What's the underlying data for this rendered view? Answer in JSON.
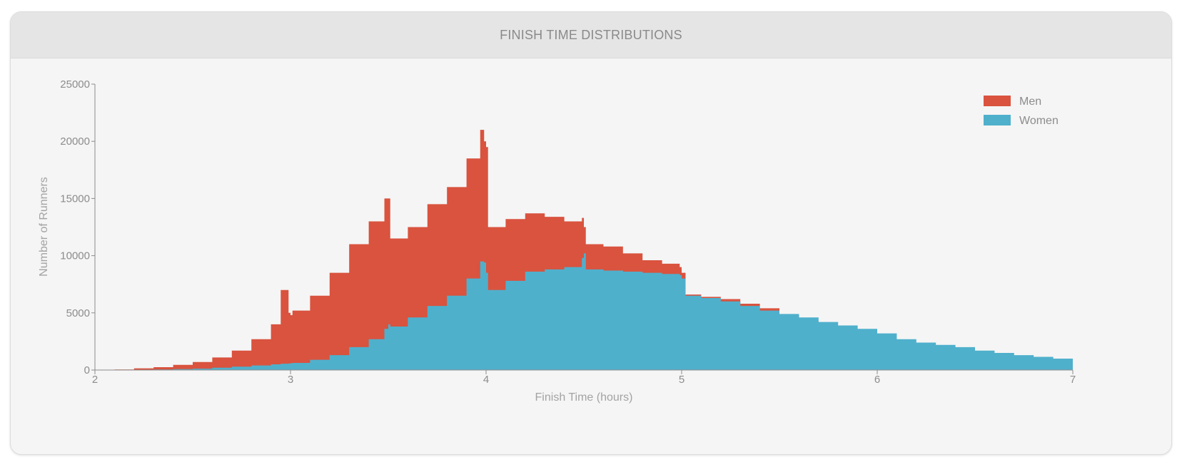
{
  "card": {
    "title": "FINISH TIME DISTRIBUTIONS"
  },
  "colors": {
    "men": "#d9533f",
    "women": "#4fb0cc",
    "axis": "#8c8c8c"
  },
  "chart_data": {
    "type": "area",
    "title": "FINISH TIME DISTRIBUTIONS",
    "xlabel": "Finish Time (hours)",
    "ylabel": "Number of Runners",
    "xlim": [
      2,
      7
    ],
    "ylim": [
      0,
      25000
    ],
    "x_ticks": [
      "2",
      "3",
      "4",
      "5",
      "6",
      "7"
    ],
    "y_ticks": [
      "0",
      "5000",
      "10000",
      "15000",
      "20000",
      "25000"
    ],
    "grid": false,
    "legend": {
      "placement": "top-right",
      "entries": [
        "Men",
        "Women"
      ]
    },
    "x": [
      2.0,
      2.1,
      2.2,
      2.3,
      2.4,
      2.5,
      2.6,
      2.7,
      2.8,
      2.9,
      2.95,
      2.99,
      3.0,
      3.01,
      3.1,
      3.2,
      3.3,
      3.4,
      3.48,
      3.5,
      3.51,
      3.6,
      3.7,
      3.8,
      3.9,
      3.97,
      3.99,
      4.0,
      4.01,
      4.1,
      4.2,
      4.3,
      4.4,
      4.49,
      4.5,
      4.51,
      4.6,
      4.7,
      4.8,
      4.9,
      4.99,
      5.0,
      5.02,
      5.1,
      5.2,
      5.3,
      5.4,
      5.5,
      5.6,
      5.7,
      5.8,
      5.9,
      6.0,
      6.1,
      6.2,
      6.3,
      6.4,
      6.5,
      6.6,
      6.7,
      6.8,
      6.9,
      7.0
    ],
    "series": [
      {
        "name": "Men",
        "values": [
          0,
          50,
          150,
          250,
          450,
          700,
          1100,
          1700,
          2700,
          4000,
          7000,
          5000,
          4800,
          5200,
          6500,
          8500,
          11000,
          13000,
          15000,
          15000,
          11500,
          12500,
          14500,
          16000,
          18500,
          21000,
          20000,
          19500,
          12500,
          13200,
          13700,
          13400,
          13000,
          13300,
          12500,
          11000,
          10800,
          10200,
          9600,
          9300,
          9000,
          8500,
          6600,
          6400,
          6200,
          5800,
          5400,
          4800,
          4300,
          3900,
          3400,
          2900,
          2500,
          2200,
          1900,
          1700,
          1500,
          1300,
          1200,
          1100,
          1000,
          900,
          850
        ]
      },
      {
        "name": "Women",
        "values": [
          0,
          10,
          30,
          50,
          80,
          120,
          200,
          300,
          400,
          500,
          550,
          580,
          600,
          620,
          900,
          1300,
          2000,
          2700,
          3600,
          4000,
          3800,
          4600,
          5600,
          6500,
          8000,
          9500,
          9400,
          8500,
          7000,
          7800,
          8600,
          8800,
          9000,
          9800,
          10200,
          8800,
          8700,
          8600,
          8500,
          8400,
          8300,
          8000,
          6500,
          6300,
          6000,
          5600,
          5200,
          4900,
          4600,
          4200,
          3900,
          3600,
          3200,
          2700,
          2400,
          2200,
          2000,
          1700,
          1500,
          1300,
          1150,
          1000,
          900
        ]
      }
    ]
  }
}
